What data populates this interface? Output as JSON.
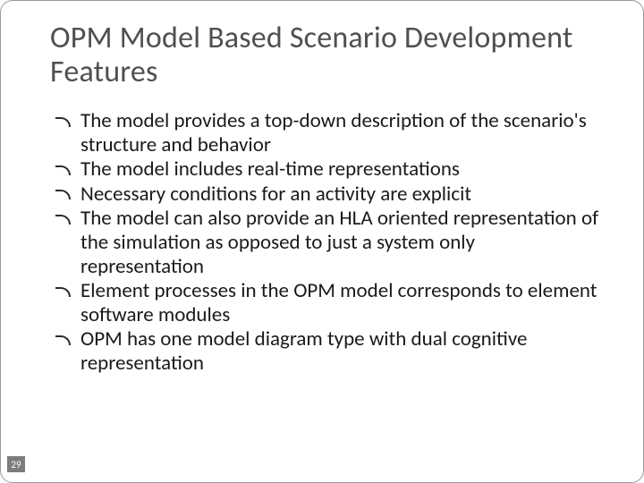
{
  "slide": {
    "title": "OPM Model Based Scenario Development Features",
    "title_fontsize": 34,
    "title_color": "#4f4f4f",
    "bullet_fontsize": 23,
    "bullet_color": "#1a1a1a",
    "bullet_marker_color": "#2a2a2a",
    "background_color": "#ffffff",
    "bullets": [
      "The model provides a top-down description of the scenario's structure and behavior",
      "The model includes real-time representations",
      "Necessary conditions for an activity are explicit",
      "The model can also provide an HLA oriented representation of the simulation as opposed to just a system only representation",
      "Element processes in the OPM model corresponds to element software modules",
      "OPM has one model diagram type with dual cognitive representation"
    ],
    "page_number": "29",
    "page_number_bg": "#7c7c7c",
    "page_number_color": "#ffffff",
    "frame_border_color": "#9a9a9a"
  }
}
